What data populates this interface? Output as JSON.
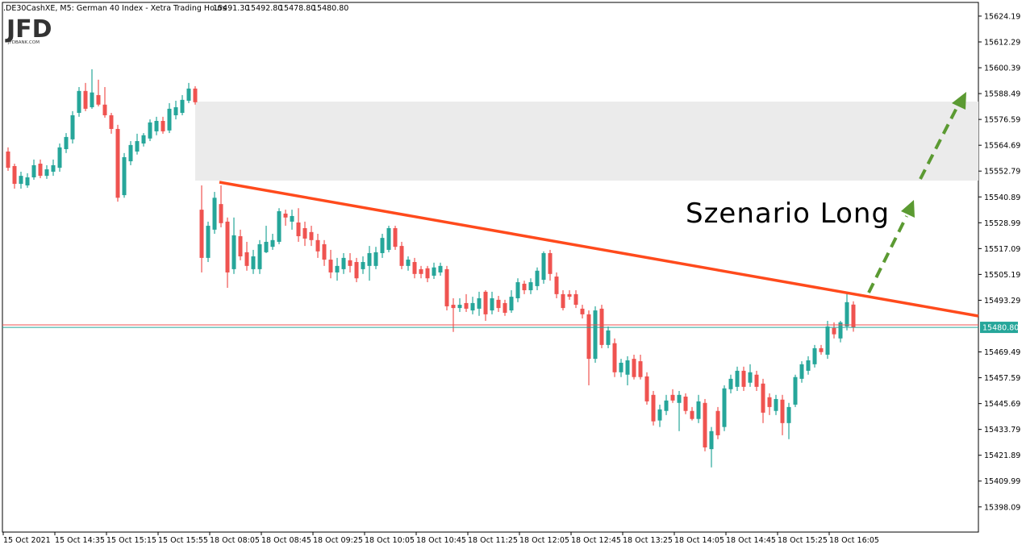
{
  "chart_data": {
    "type": "candlestick",
    "title": ".DE30CashXE, M5:  German 40 Index  - Xetra Trading Hours",
    "ohlc_labels": [
      "15491.30",
      "15492.80",
      "15478.80",
      "15480.80"
    ],
    "logo": "JFD",
    "logo_sub": "JFDBANK.COM",
    "annotation": "Szenario Long",
    "price_label": "15480.80",
    "up_color": "#26a69a",
    "down_color": "#ef5350",
    "ylim": [
      15386.5,
      15631.6
    ],
    "yticks": [
      15624.19,
      15612.29,
      15600.39,
      15588.49,
      15576.59,
      15564.69,
      15552.79,
      15540.89,
      15528.99,
      15517.09,
      15505.19,
      15493.29,
      15469.49,
      15457.59,
      15445.69,
      15433.79,
      15421.89,
      15409.99,
      15398.09
    ],
    "categories": [
      "15 Oct 2021",
      null,
      null,
      null,
      null,
      null,
      null,
      null,
      "15 Oct 14:35",
      null,
      null,
      null,
      null,
      null,
      null,
      null,
      "15 Oct 15:15",
      null,
      null,
      null,
      null,
      null,
      null,
      null,
      "15 Oct 15:55",
      null,
      null,
      null,
      null,
      null,
      null,
      null,
      "18 Oct 08:05",
      null,
      null,
      null,
      null,
      null,
      null,
      null,
      "18 Oct 08:45",
      null,
      null,
      null,
      null,
      null,
      null,
      null,
      "18 Oct 09:25",
      null,
      null,
      null,
      null,
      null,
      null,
      null,
      "18 Oct 10:05",
      null,
      null,
      null,
      null,
      null,
      null,
      null,
      "18 Oct 10:45",
      null,
      null,
      null,
      null,
      null,
      null,
      null,
      "18 Oct 11:25",
      null,
      null,
      null,
      null,
      null,
      null,
      null,
      "18 Oct 12:05",
      null,
      null,
      null,
      null,
      null,
      null,
      null,
      "18 Oct 12:45",
      null,
      null,
      null,
      null,
      null,
      null,
      null,
      "18 Oct 13:25",
      null,
      null,
      null,
      null,
      null,
      null,
      null,
      "18 Oct 14:05",
      null,
      null,
      null,
      null,
      null,
      null,
      null,
      "18 Oct 14:45",
      null,
      null,
      null,
      null,
      null,
      null,
      null,
      "18 Oct 15:25",
      null,
      null,
      null,
      null,
      null,
      null,
      null,
      "18 Oct 16:05",
      null,
      null,
      null
    ],
    "ohlc": [
      [
        15561.8,
        15563.7,
        15552.9,
        15554.3
      ],
      [
        15555.1,
        15556.2,
        15544.7,
        15546.9
      ],
      [
        15546.9,
        15552.5,
        15544.7,
        15550.6
      ],
      [
        15546.2,
        15551.8,
        15545.1,
        15549.9
      ],
      [
        15549.9,
        15558.1,
        15548.8,
        15555.5
      ],
      [
        15556.2,
        15558.1,
        15549.5,
        15550.6
      ],
      [
        15550.6,
        15555.5,
        15549.2,
        15553.6
      ],
      [
        15552.5,
        15558.1,
        15550.6,
        15555.5
      ],
      [
        15554.3,
        15565.5,
        15552.5,
        15563.7
      ],
      [
        15562.9,
        15570.3,
        15561.1,
        15568.5
      ],
      [
        15567.4,
        15580.4,
        15565.5,
        15578.5
      ],
      [
        15579.6,
        15591.5,
        15577.8,
        15589.7
      ],
      [
        15589.7,
        15593.4,
        15580.4,
        15581.5
      ],
      [
        15582.2,
        15599.7,
        15581.5,
        15589.0
      ],
      [
        15587.8,
        15594.9,
        15582.6,
        15583.4
      ],
      [
        15583.4,
        15591.5,
        15577.4,
        15578.5
      ],
      [
        15578.5,
        15579.6,
        15570.0,
        15572.2
      ],
      [
        15572.2,
        15574.1,
        15538.7,
        15540.5
      ],
      [
        15541.7,
        15561.1,
        15540.5,
        15559.2
      ],
      [
        15557.3,
        15566.6,
        15555.5,
        15564.8
      ],
      [
        15561.8,
        15570.0,
        15560.4,
        15566.6
      ],
      [
        15565.5,
        15570.3,
        15564.1,
        15569.3
      ],
      [
        15567.8,
        15576.6,
        15566.6,
        15575.2
      ],
      [
        15571.1,
        15577.8,
        15569.3,
        15575.9
      ],
      [
        15575.9,
        15577.8,
        15570.0,
        15571.1
      ],
      [
        15571.5,
        15584.1,
        15570.3,
        15581.5
      ],
      [
        15578.5,
        15585.2,
        15576.6,
        15582.2
      ],
      [
        15579.6,
        15587.8,
        15578.5,
        15585.6
      ],
      [
        15585.2,
        15593.4,
        15584.1,
        15590.8
      ],
      [
        15590.8,
        15591.9,
        15583.4,
        15584.5
      ],
      [
        15535.0,
        15546.2,
        15506.1,
        15512.8
      ],
      [
        15512.8,
        15529.5,
        15510.9,
        15527.6
      ],
      [
        15525.8,
        15543.2,
        15523.9,
        15540.5
      ],
      [
        15537.6,
        15546.2,
        15526.9,
        15528.8
      ],
      [
        15529.5,
        15531.4,
        15499.0,
        15506.1
      ],
      [
        15507.6,
        15531.4,
        15505.4,
        15523.2
      ],
      [
        15522.8,
        15525.8,
        15511.7,
        15513.5
      ],
      [
        15515.4,
        15520.2,
        15506.9,
        15509.1
      ],
      [
        15507.6,
        15516.5,
        15505.4,
        15513.5
      ],
      [
        15507.6,
        15521.0,
        15505.4,
        15519.1
      ],
      [
        15515.4,
        15527.6,
        15515.0,
        15520.2
      ],
      [
        15517.9,
        15523.9,
        15516.5,
        15521.0
      ],
      [
        15520.2,
        15535.7,
        15519.1,
        15534.3
      ],
      [
        15533.2,
        15535.0,
        15527.6,
        15531.4
      ],
      [
        15529.5,
        15535.0,
        15525.8,
        15532.1
      ],
      [
        15529.1,
        15535.7,
        15520.2,
        15522.8
      ],
      [
        15526.5,
        15529.5,
        15518.3,
        15521.7
      ],
      [
        15524.7,
        15527.6,
        15518.3,
        15521.0
      ],
      [
        15521.0,
        15523.9,
        15512.8,
        15515.8
      ],
      [
        15519.1,
        15521.0,
        15509.1,
        15512.0
      ],
      [
        15512.0,
        15516.5,
        15503.4,
        15506.1
      ],
      [
        15506.1,
        15512.8,
        15502.3,
        15509.1
      ],
      [
        15507.6,
        15515.0,
        15505.4,
        15512.8
      ],
      [
        15511.7,
        15515.0,
        15506.1,
        15509.1
      ],
      [
        15510.9,
        15512.8,
        15501.6,
        15503.4
      ],
      [
        15507.6,
        15513.5,
        15505.4,
        15510.9
      ],
      [
        15509.1,
        15518.3,
        15502.3,
        15515.0
      ],
      [
        15509.1,
        15517.9,
        15507.6,
        15515.4
      ],
      [
        15515.0,
        15523.9,
        15512.8,
        15522.0
      ],
      [
        15516.5,
        15527.6,
        15515.4,
        15526.5
      ],
      [
        15526.5,
        15527.6,
        15516.5,
        15517.9
      ],
      [
        15518.3,
        15520.2,
        15507.6,
        15509.1
      ],
      [
        15509.1,
        15513.5,
        15506.9,
        15512.0
      ],
      [
        15510.9,
        15512.8,
        15503.4,
        15505.4
      ],
      [
        15507.6,
        15509.1,
        15503.4,
        15505.4
      ],
      [
        15508.0,
        15509.1,
        15501.6,
        15503.4
      ],
      [
        15504.6,
        15510.6,
        15503.1,
        15508.4
      ],
      [
        15506.1,
        15510.6,
        15504.6,
        15509.1
      ],
      [
        15507.6,
        15509.1,
        15488.6,
        15490.5
      ],
      [
        15491.2,
        15494.2,
        15478.7,
        15489.7
      ],
      [
        15489.7,
        15494.2,
        15487.9,
        15491.2
      ],
      [
        15492.0,
        15496.1,
        15487.9,
        15489.4
      ],
      [
        15488.6,
        15494.9,
        15486.8,
        15492.0
      ],
      [
        15489.4,
        15497.2,
        15486.1,
        15494.2
      ],
      [
        15497.2,
        15497.9,
        15483.8,
        15486.8
      ],
      [
        15488.6,
        15497.2,
        15486.8,
        15494.2
      ],
      [
        15493.5,
        15495.3,
        15487.9,
        15489.7
      ],
      [
        15492.0,
        15493.5,
        15486.1,
        15487.5
      ],
      [
        15488.6,
        15497.9,
        15487.5,
        15494.9
      ],
      [
        15494.2,
        15503.4,
        15492.4,
        15501.6
      ],
      [
        15500.9,
        15502.3,
        15496.1,
        15497.9
      ],
      [
        15497.9,
        15503.4,
        15496.1,
        15501.6
      ],
      [
        15499.8,
        15508.4,
        15497.9,
        15506.9
      ],
      [
        15502.7,
        15515.8,
        15500.9,
        15515.0
      ],
      [
        15515.0,
        15516.5,
        15502.3,
        15505.4
      ],
      [
        15504.2,
        15506.1,
        15494.2,
        15496.1
      ],
      [
        15496.1,
        15497.9,
        15488.6,
        15489.7
      ],
      [
        15496.1,
        15497.9,
        15493.5,
        15494.9
      ],
      [
        15496.1,
        15497.9,
        15489.7,
        15491.2
      ],
      [
        15489.4,
        15491.2,
        15484.9,
        15486.8
      ],
      [
        15486.8,
        15488.6,
        15454.1,
        15466.3
      ],
      [
        15466.3,
        15490.5,
        15464.5,
        15488.6
      ],
      [
        15489.4,
        15491.2,
        15471.2,
        15472.7
      ],
      [
        15472.7,
        15481.2,
        15471.2,
        15479.4
      ],
      [
        15473.5,
        15475.7,
        15457.9,
        15460.1
      ],
      [
        15460.1,
        15466.3,
        15457.9,
        15464.5
      ],
      [
        15459.0,
        15467.5,
        15454.1,
        15465.6
      ],
      [
        15466.3,
        15468.2,
        15456.8,
        15457.9
      ],
      [
        15465.2,
        15468.2,
        15456.8,
        15457.9
      ],
      [
        15458.2,
        15460.1,
        15445.2,
        15446.7
      ],
      [
        15449.7,
        15451.5,
        15435.6,
        15437.5
      ],
      [
        15437.9,
        15445.2,
        15434.9,
        15443.0
      ],
      [
        15442.3,
        15449.7,
        15440.4,
        15447.1
      ],
      [
        15449.7,
        15452.3,
        15446.0,
        15447.1
      ],
      [
        15446.0,
        15451.5,
        15433.0,
        15449.7
      ],
      [
        15448.9,
        15450.4,
        15440.8,
        15442.3
      ],
      [
        15442.3,
        15444.1,
        15437.9,
        15438.6
      ],
      [
        15438.6,
        15449.7,
        15436.7,
        15446.7
      ],
      [
        15446.0,
        15447.8,
        15423.7,
        15425.5
      ],
      [
        15424.7,
        15434.9,
        15416.3,
        15433.0
      ],
      [
        15442.3,
        15444.1,
        15429.3,
        15431.1
      ],
      [
        15434.9,
        15454.1,
        15433.0,
        15452.7
      ],
      [
        15452.3,
        15459.0,
        15450.4,
        15457.1
      ],
      [
        15453.4,
        15462.7,
        15451.5,
        15460.8
      ],
      [
        15460.8,
        15462.7,
        15451.5,
        15453.4
      ],
      [
        15455.3,
        15463.8,
        15453.4,
        15460.1
      ],
      [
        15459.0,
        15460.8,
        15451.5,
        15453.4
      ],
      [
        15454.9,
        15457.1,
        15436.7,
        15441.5
      ],
      [
        15448.6,
        15450.4,
        15440.4,
        15444.1
      ],
      [
        15442.3,
        15449.7,
        15440.4,
        15447.8
      ],
      [
        15447.5,
        15449.7,
        15431.1,
        15436.7
      ],
      [
        15436.7,
        15446.0,
        15429.3,
        15444.1
      ],
      [
        15445.2,
        15459.0,
        15444.1,
        15457.9
      ],
      [
        15457.1,
        15465.2,
        15455.3,
        15463.8
      ],
      [
        15460.8,
        15467.5,
        15459.0,
        15465.6
      ],
      [
        15463.8,
        15472.7,
        15462.3,
        15471.2
      ],
      [
        15471.2,
        15472.7,
        15468.2,
        15469.4
      ],
      [
        15468.2,
        15483.8,
        15466.3,
        15481.2
      ],
      [
        15480.5,
        15483.1,
        15475.7,
        15477.6
      ],
      [
        15475.7,
        15483.8,
        15473.9,
        15483.1
      ],
      [
        15481.2,
        15496.1,
        15479.4,
        15492.4
      ],
      [
        15491.3,
        15492.8,
        15478.8,
        15480.8
      ]
    ]
  }
}
